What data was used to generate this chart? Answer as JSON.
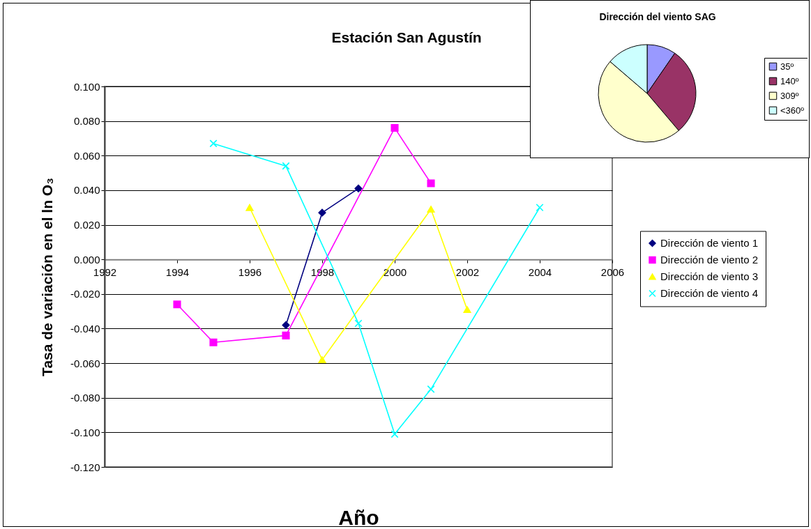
{
  "chart_data": [
    {
      "type": "line",
      "title": "Estación San Agustín",
      "xlabel": "Año",
      "ylabel": "Tasa de variación en el ln O₃",
      "xlim": [
        1992,
        2006
      ],
      "xticks": [
        1992,
        1994,
        1996,
        1998,
        2000,
        2002,
        2004,
        2006
      ],
      "ylim": [
        -0.12,
        0.1
      ],
      "yticks": [
        {
          "value": -0.12,
          "label": "-0.120"
        },
        {
          "value": -0.1,
          "label": "-0.100"
        },
        {
          "value": -0.08,
          "label": "-0.080"
        },
        {
          "value": -0.06,
          "label": "-0.060"
        },
        {
          "value": -0.04,
          "label": "-0.040"
        },
        {
          "value": -0.02,
          "label": "-0.020"
        },
        {
          "value": 0,
          "label": "0.000"
        },
        {
          "value": 0.02,
          "label": "0.020"
        },
        {
          "value": 0.04,
          "label": "0.040"
        },
        {
          "value": 0.06,
          "label": "0.060"
        },
        {
          "value": 0.08,
          "label": "0.080"
        },
        {
          "value": 0.1,
          "label": "0.100"
        }
      ],
      "grid": "y",
      "legend": "right",
      "series": [
        {
          "name": "Dirección de viento 1",
          "color": "#000080",
          "marker": "diamond",
          "x": [
            1997,
            1998,
            1999
          ],
          "values": [
            -0.038,
            0.027,
            0.041
          ]
        },
        {
          "name": "Dirección de viento 2",
          "color": "#ff00ff",
          "marker": "square",
          "x": [
            1994,
            1995,
            1997,
            2000,
            2001
          ],
          "values": [
            -0.026,
            -0.048,
            -0.044,
            0.076,
            0.044
          ]
        },
        {
          "name": "Dirección de viento 3",
          "color": "#ffff00",
          "marker": "triangle",
          "x": [
            1996,
            1998,
            2001,
            2002
          ],
          "values": [
            0.03,
            -0.058,
            0.029,
            -0.029
          ]
        },
        {
          "name": "Dirección de viento 4",
          "color": "#00ffff",
          "marker": "cross",
          "x": [
            1995,
            1997,
            1999,
            2000,
            2001,
            2004
          ],
          "values": [
            0.067,
            0.054,
            -0.037,
            -0.101,
            -0.075,
            0.03
          ]
        }
      ]
    },
    {
      "type": "pie",
      "title": "Dirección del viento SAG",
      "legend": "right",
      "categories": [
        "35º",
        "140º",
        "309º",
        "<360º"
      ],
      "values": [
        9.6,
        29.2,
        47.5,
        13.7
      ],
      "colors": [
        "#9999ff",
        "#993366",
        "#ffffcc",
        "#ccffff"
      ]
    }
  ]
}
